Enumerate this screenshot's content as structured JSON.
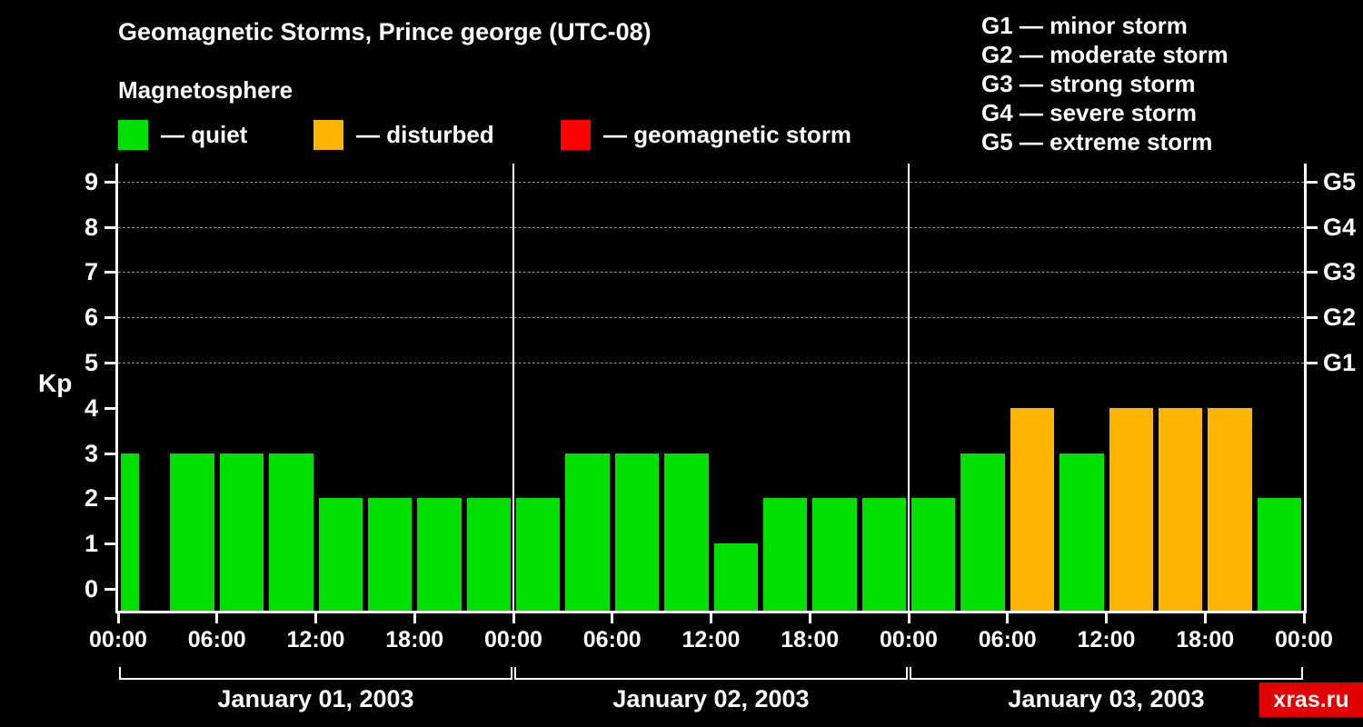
{
  "title": "Geomagnetic Storms, Prince george (UTC-08)",
  "subtitle": "Magnetosphere",
  "watermark": "xras.ru",
  "colors": {
    "background": "#000000",
    "text": "#ffffff",
    "axis": "#ffffff",
    "grid": "#949494",
    "quiet": "#00e000",
    "disturbed": "#ffb400",
    "storm": "#ff0000",
    "watermark_bg": "#e00000"
  },
  "legend": {
    "items": [
      {
        "name": "quiet",
        "label": "— quiet",
        "color": "#00e000"
      },
      {
        "name": "disturbed",
        "label": "— disturbed",
        "color": "#ffb400"
      },
      {
        "name": "storm",
        "label": "— geomagnetic storm",
        "color": "#ff0000"
      }
    ]
  },
  "storm_scale_legend": [
    "G1 — minor storm",
    "G2 — moderate storm",
    "G3 — strong storm",
    "G4 — severe storm",
    "G5 — extreme storm"
  ],
  "chart_data": {
    "type": "bar",
    "title": "Geomagnetic Storms, Prince george (UTC-08)",
    "ylabel": "Kp",
    "ylim": [
      0,
      9
    ],
    "yticks": [
      0,
      1,
      2,
      3,
      4,
      5,
      6,
      7,
      8,
      9
    ],
    "grid_levels": [
      5,
      6,
      7,
      8,
      9
    ],
    "right_axis_ticks": [
      {
        "kp": 5,
        "label": "G1"
      },
      {
        "kp": 6,
        "label": "G2"
      },
      {
        "kp": 7,
        "label": "G3"
      },
      {
        "kp": 8,
        "label": "G4"
      },
      {
        "kp": 9,
        "label": "G5"
      }
    ],
    "x_tick_labels": [
      "00:00",
      "06:00",
      "12:00",
      "18:00",
      "00:00",
      "06:00",
      "12:00",
      "18:00",
      "00:00",
      "06:00",
      "12:00",
      "18:00",
      "00:00"
    ],
    "interval_hours": 3,
    "color_rules": {
      "quiet_max_kp": 3,
      "disturbed_max_kp": 4
    },
    "days": [
      {
        "label": "January 01, 2003",
        "kp_values": [
          3,
          3,
          3,
          3,
          2,
          2,
          2,
          2
        ]
      },
      {
        "label": "January 02, 2003",
        "kp_values": [
          2,
          3,
          3,
          3,
          1,
          2,
          2,
          2
        ]
      },
      {
        "label": "January 03, 2003",
        "kp_values": [
          2,
          3,
          4,
          3,
          4,
          4,
          4,
          2
        ]
      }
    ],
    "legend_position": "top",
    "grid": "dashed horizontal at G-storm levels only"
  }
}
